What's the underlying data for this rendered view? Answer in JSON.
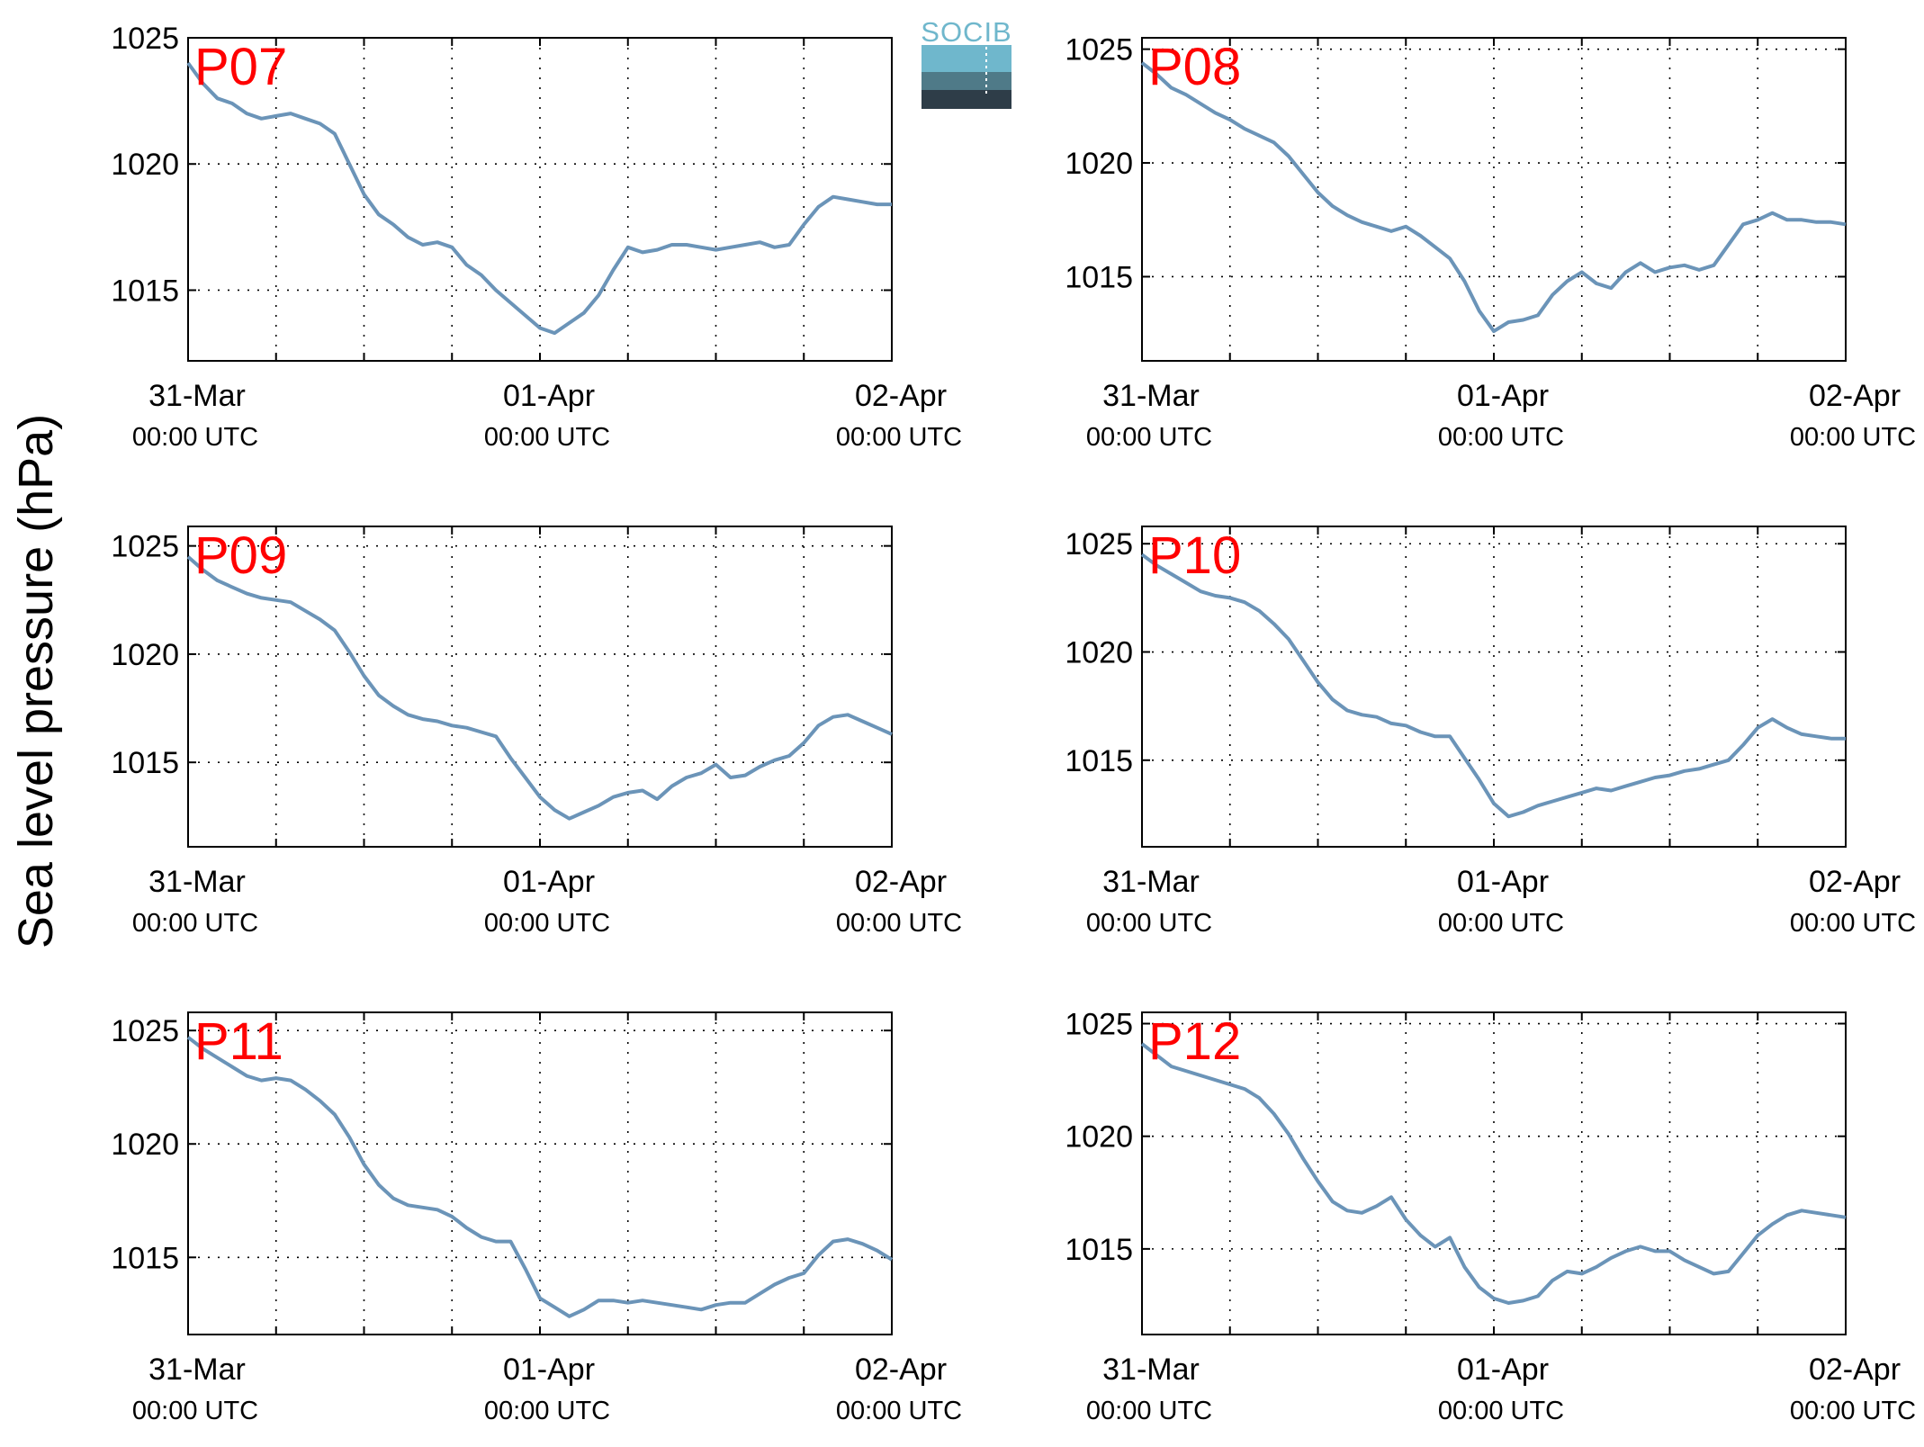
{
  "figure": {
    "ylabel": "Sea level pressure (hPa)",
    "logo_text": "SOCIB",
    "line_color": "#6b94b8",
    "label_color": "#ff0000"
  },
  "chart_data": [
    {
      "type": "line",
      "panel_label": "P07",
      "xlim": [
        0,
        48
      ],
      "ylim": [
        1012.2,
        1025.0
      ],
      "yticks": [
        1015,
        1020,
        1025
      ],
      "xtick_hours": [
        0,
        24,
        48
      ],
      "xtick_labels": [
        "31-Mar",
        "01-Apr",
        "02-Apr"
      ],
      "xtick_sublabels": [
        "00:00 UTC",
        "00:00 UTC",
        "00:00 UTC"
      ],
      "grid": true,
      "series": [
        {
          "x_hours": [
            0,
            1,
            2,
            3,
            4,
            5,
            6,
            7,
            8,
            9,
            10,
            11,
            12,
            13,
            14,
            15,
            16,
            17,
            18,
            19,
            20,
            21,
            22,
            23,
            24,
            25,
            26,
            27,
            28,
            29,
            30,
            31,
            32,
            33,
            34,
            35,
            36,
            37,
            38,
            39,
            40,
            41,
            42,
            43,
            44,
            45,
            46,
            47,
            48
          ],
          "values": [
            1024.0,
            1023.2,
            1022.6,
            1022.4,
            1022.0,
            1021.8,
            1021.9,
            1022.0,
            1021.8,
            1021.6,
            1021.2,
            1020.0,
            1018.8,
            1018.0,
            1017.6,
            1017.1,
            1016.8,
            1016.9,
            1016.7,
            1016.0,
            1015.6,
            1015.0,
            1014.5,
            1014.0,
            1013.5,
            1013.3,
            1013.7,
            1014.1,
            1014.8,
            1015.8,
            1016.7,
            1016.5,
            1016.6,
            1016.8,
            1016.8,
            1016.7,
            1016.6,
            1016.7,
            1016.8,
            1016.9,
            1016.7,
            1016.8,
            1017.6,
            1018.3,
            1018.7,
            1018.6,
            1018.5,
            1018.4,
            1018.4
          ]
        }
      ]
    },
    {
      "type": "line",
      "panel_label": "P08",
      "xlim": [
        0,
        48
      ],
      "ylim": [
        1011.3,
        1025.5
      ],
      "yticks": [
        1015,
        1020,
        1025
      ],
      "xtick_hours": [
        0,
        24,
        48
      ],
      "xtick_labels": [
        "31-Mar",
        "01-Apr",
        "02-Apr"
      ],
      "xtick_sublabels": [
        "00:00 UTC",
        "00:00 UTC",
        "00:00 UTC"
      ],
      "grid": true,
      "series": [
        {
          "x_hours": [
            0,
            1,
            2,
            3,
            4,
            5,
            6,
            7,
            8,
            9,
            10,
            11,
            12,
            13,
            14,
            15,
            16,
            17,
            18,
            19,
            20,
            21,
            22,
            23,
            24,
            25,
            26,
            27,
            28,
            29,
            30,
            31,
            32,
            33,
            34,
            35,
            36,
            37,
            38,
            39,
            40,
            41,
            42,
            43,
            44,
            45,
            46,
            47,
            48
          ],
          "values": [
            1024.4,
            1023.9,
            1023.3,
            1023.0,
            1022.6,
            1022.2,
            1021.9,
            1021.5,
            1021.2,
            1020.9,
            1020.3,
            1019.5,
            1018.7,
            1018.1,
            1017.7,
            1017.4,
            1017.2,
            1017.0,
            1017.2,
            1016.8,
            1016.3,
            1015.8,
            1014.8,
            1013.5,
            1012.6,
            1013.0,
            1013.1,
            1013.3,
            1014.2,
            1014.8,
            1015.2,
            1014.7,
            1014.5,
            1015.2,
            1015.6,
            1015.2,
            1015.4,
            1015.5,
            1015.3,
            1015.5,
            1016.4,
            1017.3,
            1017.5,
            1017.8,
            1017.5,
            1017.5,
            1017.4,
            1017.4,
            1017.3
          ]
        }
      ]
    },
    {
      "type": "line",
      "panel_label": "P09",
      "xlim": [
        0,
        48
      ],
      "ylim": [
        1011.1,
        1025.9
      ],
      "yticks": [
        1015,
        1020,
        1025
      ],
      "xtick_hours": [
        0,
        24,
        48
      ],
      "xtick_labels": [
        "31-Mar",
        "01-Apr",
        "02-Apr"
      ],
      "xtick_sublabels": [
        "00:00 UTC",
        "00:00 UTC",
        "00:00 UTC"
      ],
      "grid": true,
      "series": [
        {
          "x_hours": [
            0,
            1,
            2,
            3,
            4,
            5,
            6,
            7,
            8,
            9,
            10,
            11,
            12,
            13,
            14,
            15,
            16,
            17,
            18,
            19,
            20,
            21,
            22,
            23,
            24,
            25,
            26,
            27,
            28,
            29,
            30,
            31,
            32,
            33,
            34,
            35,
            36,
            37,
            38,
            39,
            40,
            41,
            42,
            43,
            44,
            45,
            46,
            47,
            48
          ],
          "values": [
            1024.5,
            1023.9,
            1023.4,
            1023.1,
            1022.8,
            1022.6,
            1022.5,
            1022.4,
            1022.0,
            1021.6,
            1021.1,
            1020.1,
            1019.0,
            1018.1,
            1017.6,
            1017.2,
            1017.0,
            1016.9,
            1016.7,
            1016.6,
            1016.4,
            1016.2,
            1015.2,
            1014.3,
            1013.4,
            1012.8,
            1012.4,
            1012.7,
            1013.0,
            1013.4,
            1013.6,
            1013.7,
            1013.3,
            1013.9,
            1014.3,
            1014.5,
            1014.9,
            1014.3,
            1014.4,
            1014.8,
            1015.1,
            1015.3,
            1015.9,
            1016.7,
            1017.1,
            1017.2,
            1016.9,
            1016.6,
            1016.3
          ]
        }
      ]
    },
    {
      "type": "line",
      "panel_label": "P10",
      "xlim": [
        0,
        48
      ],
      "ylim": [
        1011.0,
        1025.8
      ],
      "yticks": [
        1015,
        1020,
        1025
      ],
      "xtick_hours": [
        0,
        24,
        48
      ],
      "xtick_labels": [
        "31-Mar",
        "01-Apr",
        "02-Apr"
      ],
      "xtick_sublabels": [
        "00:00 UTC",
        "00:00 UTC",
        "00:00 UTC"
      ],
      "grid": true,
      "series": [
        {
          "x_hours": [
            0,
            1,
            2,
            3,
            4,
            5,
            6,
            7,
            8,
            9,
            10,
            11,
            12,
            13,
            14,
            15,
            16,
            17,
            18,
            19,
            20,
            21,
            22,
            23,
            24,
            25,
            26,
            27,
            28,
            29,
            30,
            31,
            32,
            33,
            34,
            35,
            36,
            37,
            38,
            39,
            40,
            41,
            42,
            43,
            44,
            45,
            46,
            47,
            48
          ],
          "values": [
            1024.5,
            1024.0,
            1023.6,
            1023.2,
            1022.8,
            1022.6,
            1022.5,
            1022.3,
            1021.9,
            1021.3,
            1020.6,
            1019.6,
            1018.6,
            1017.8,
            1017.3,
            1017.1,
            1017.0,
            1016.7,
            1016.6,
            1016.3,
            1016.1,
            1016.1,
            1015.1,
            1014.1,
            1013.0,
            1012.4,
            1012.6,
            1012.9,
            1013.1,
            1013.3,
            1013.5,
            1013.7,
            1013.6,
            1013.8,
            1014.0,
            1014.2,
            1014.3,
            1014.5,
            1014.6,
            1014.8,
            1015.0,
            1015.7,
            1016.5,
            1016.9,
            1016.5,
            1016.2,
            1016.1,
            1016.0,
            1016.0
          ]
        }
      ]
    },
    {
      "type": "line",
      "panel_label": "P11",
      "xlim": [
        0,
        48
      ],
      "ylim": [
        1011.6,
        1025.8
      ],
      "yticks": [
        1015,
        1020,
        1025
      ],
      "xtick_hours": [
        0,
        24,
        48
      ],
      "xtick_labels": [
        "31-Mar",
        "01-Apr",
        "02-Apr"
      ],
      "xtick_sublabels": [
        "00:00 UTC",
        "00:00 UTC",
        "00:00 UTC"
      ],
      "grid": true,
      "series": [
        {
          "x_hours": [
            0,
            1,
            2,
            3,
            4,
            5,
            6,
            7,
            8,
            9,
            10,
            11,
            12,
            13,
            14,
            15,
            16,
            17,
            18,
            19,
            20,
            21,
            22,
            23,
            24,
            25,
            26,
            27,
            28,
            29,
            30,
            31,
            32,
            33,
            34,
            35,
            36,
            37,
            38,
            39,
            40,
            41,
            42,
            43,
            44,
            45,
            46,
            47,
            48
          ],
          "values": [
            1024.7,
            1024.2,
            1023.8,
            1023.4,
            1023.0,
            1022.8,
            1022.9,
            1022.8,
            1022.4,
            1021.9,
            1021.3,
            1020.3,
            1019.1,
            1018.2,
            1017.6,
            1017.3,
            1017.2,
            1017.1,
            1016.8,
            1016.3,
            1015.9,
            1015.7,
            1015.7,
            1014.5,
            1013.2,
            1012.8,
            1012.4,
            1012.7,
            1013.1,
            1013.1,
            1013.0,
            1013.1,
            1013.0,
            1012.9,
            1012.8,
            1012.7,
            1012.9,
            1013.0,
            1013.0,
            1013.4,
            1013.8,
            1014.1,
            1014.3,
            1015.1,
            1015.7,
            1015.8,
            1015.6,
            1015.3,
            1014.9
          ]
        }
      ]
    },
    {
      "type": "line",
      "panel_label": "P12",
      "xlim": [
        0,
        48
      ],
      "ylim": [
        1011.2,
        1025.5
      ],
      "yticks": [
        1015,
        1020,
        1025
      ],
      "xtick_hours": [
        0,
        24,
        48
      ],
      "xtick_labels": [
        "31-Mar",
        "01-Apr",
        "02-Apr"
      ],
      "xtick_sublabels": [
        "00:00 UTC",
        "00:00 UTC",
        "00:00 UTC"
      ],
      "grid": true,
      "series": [
        {
          "x_hours": [
            0,
            1,
            2,
            3,
            4,
            5,
            6,
            7,
            8,
            9,
            10,
            11,
            12,
            13,
            14,
            15,
            16,
            17,
            18,
            19,
            20,
            21,
            22,
            23,
            24,
            25,
            26,
            27,
            28,
            29,
            30,
            31,
            32,
            33,
            34,
            35,
            36,
            37,
            38,
            39,
            40,
            41,
            42,
            43,
            44,
            45,
            46,
            47,
            48
          ],
          "values": [
            1024.1,
            1023.6,
            1023.1,
            1022.9,
            1022.7,
            1022.5,
            1022.3,
            1022.1,
            1021.7,
            1021.0,
            1020.1,
            1019.0,
            1018.0,
            1017.1,
            1016.7,
            1016.6,
            1016.9,
            1017.3,
            1016.3,
            1015.6,
            1015.1,
            1015.5,
            1014.2,
            1013.3,
            1012.8,
            1012.6,
            1012.7,
            1012.9,
            1013.6,
            1014.0,
            1013.9,
            1014.2,
            1014.6,
            1014.9,
            1015.1,
            1014.9,
            1014.9,
            1014.5,
            1014.2,
            1013.9,
            1014.0,
            1014.8,
            1015.6,
            1016.1,
            1016.5,
            1016.7,
            1016.6,
            1016.5,
            1016.4
          ]
        }
      ]
    }
  ]
}
